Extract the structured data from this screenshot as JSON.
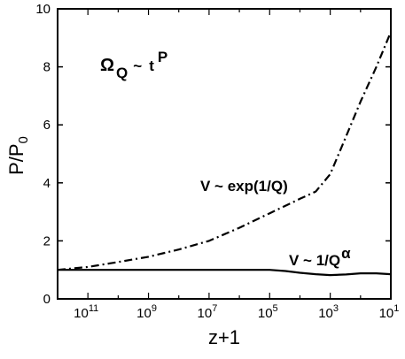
{
  "chart_data": {
    "type": "line",
    "xlabel": "z+1",
    "ylabel": "P/P",
    "ylabel_sub": "0",
    "x_scale": "log",
    "x_reversed": true,
    "xlim": [
      1000000000000.0,
      10
    ],
    "ylim": [
      0,
      10
    ],
    "x_ticks": [
      {
        "value": 100000000000.0,
        "base": "10",
        "exp": "11"
      },
      {
        "value": 1000000000.0,
        "base": "10",
        "exp": "9"
      },
      {
        "value": 10000000.0,
        "base": "10",
        "exp": "7"
      },
      {
        "value": 100000.0,
        "base": "10",
        "exp": "5"
      },
      {
        "value": 1000.0,
        "base": "10",
        "exp": "3"
      },
      {
        "value": 10,
        "base": "10",
        "exp": "1"
      }
    ],
    "y_ticks": [
      0,
      2,
      4,
      6,
      8,
      10
    ],
    "grid": false,
    "annotations": {
      "omega_symbol": "Ω",
      "omega_sub": "Q",
      "omega_mid": "~",
      "omega_t": "t",
      "omega_sup": "P",
      "exp_label": "V ~ exp(1/Q)",
      "power_label": "V ~ 1/Q",
      "power_sup": "α"
    },
    "series": [
      {
        "style": "dash-dot",
        "x": [
          1000000000000.0,
          100000000000.0,
          10000000000.0,
          1000000000.0,
          100000000.0,
          10000000.0,
          1000000.0,
          100000.0,
          10000.0,
          3000,
          1000,
          300,
          100,
          30,
          10
        ],
        "y": [
          1.0,
          1.1,
          1.27,
          1.45,
          1.7,
          2.0,
          2.45,
          2.95,
          3.45,
          3.7,
          4.3,
          5.6,
          6.8,
          8.0,
          9.2
        ]
      },
      {
        "style": "solid",
        "x": [
          1000000000000.0,
          100000000000.0,
          1000000000.0,
          10000000.0,
          100000.0,
          30000.0,
          10000.0,
          3000,
          1000,
          300,
          100,
          30,
          10
        ],
        "y": [
          1.0,
          1.0,
          1.0,
          1.0,
          1.0,
          0.96,
          0.9,
          0.85,
          0.82,
          0.84,
          0.88,
          0.88,
          0.85
        ]
      }
    ]
  }
}
